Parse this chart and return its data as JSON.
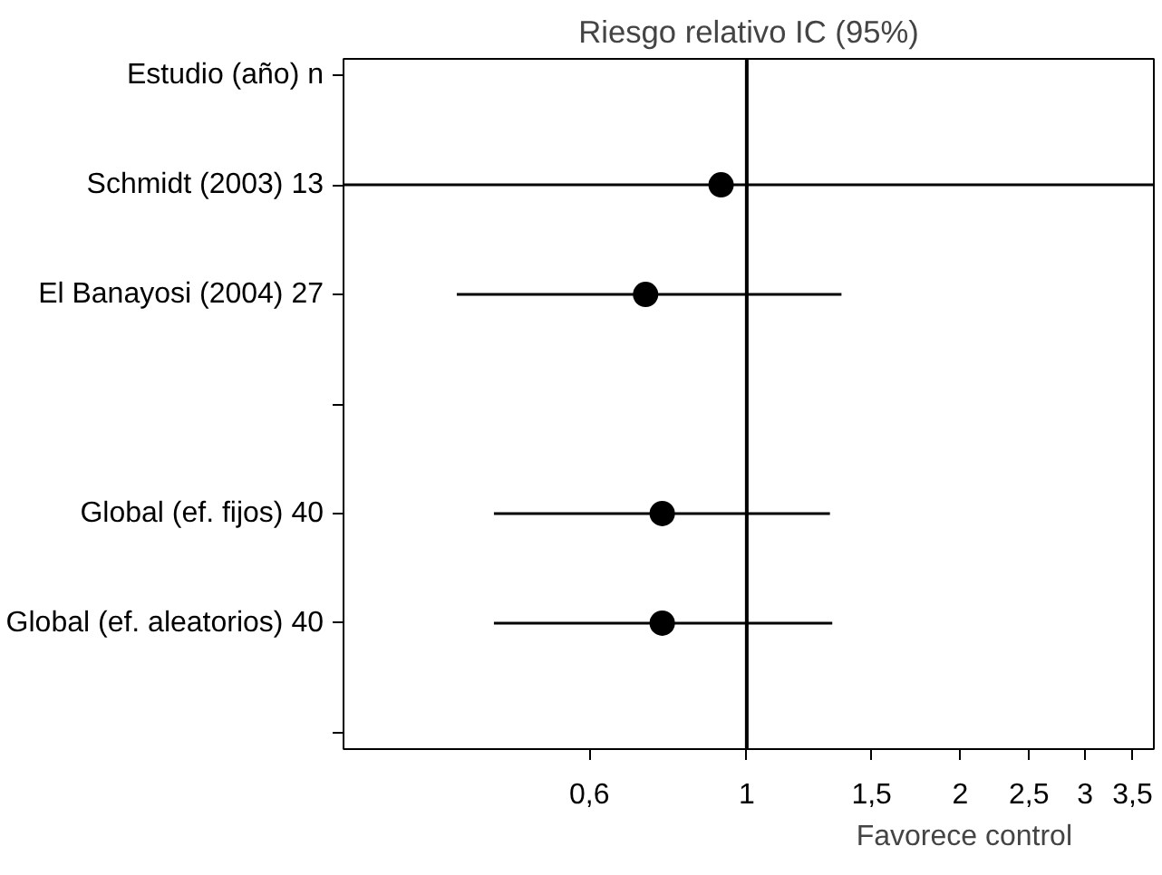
{
  "chart_data": {
    "type": "scatter",
    "title": "Riesgo relativo IC (95%)",
    "orientation": "horizontal",
    "categories": [
      "Estudio (año) n",
      "Schmidt (2003) 13",
      "El Banayosi (2004) 27",
      null,
      "Global (ef. fijos) 40",
      "Global (ef. aleatorios) 40",
      null
    ],
    "values": [
      null,
      0.92,
      0.72,
      null,
      0.76,
      0.76,
      null
    ],
    "errors": [
      null,
      [
        0.27,
        3.75
      ],
      [
        0.39,
        1.36
      ],
      null,
      [
        0.44,
        1.31
      ],
      [
        0.44,
        1.32
      ],
      null
    ],
    "color": "#000000",
    "marker": "circle",
    "log": "x",
    "grid": false,
    "xlim": [
      0.27,
      3.75
    ],
    "xticks": [
      {
        "value": 0.6,
        "label": "0,6"
      },
      1,
      {
        "value": 1.5,
        "label": "1,5"
      },
      2,
      {
        "value": 2.5,
        "label": "2,5"
      },
      3,
      {
        "value": 3.5,
        "label": "3,5"
      }
    ],
    "ref_lines": [
      {
        "axis": "x",
        "value": 1,
        "color": "#000000"
      }
    ],
    "annotations": [
      "Favorece control"
    ]
  }
}
